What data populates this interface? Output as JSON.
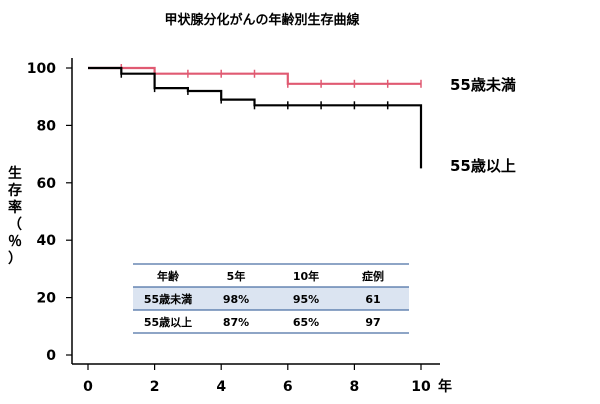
{
  "chart_data": {
    "type": "line",
    "title": "甲状腺分化がんの年齢別生存曲線",
    "ylabel": "生存率（％）",
    "x_unit": "年",
    "xlim": [
      0,
      10
    ],
    "ylim": [
      0,
      100
    ],
    "x_ticks": [
      0,
      2,
      4,
      6,
      8,
      10
    ],
    "y_ticks": [
      0,
      20,
      40,
      60,
      80,
      100
    ],
    "grid": false,
    "series": [
      {
        "name": "55歳未満",
        "color": "#e05a72",
        "x": [
          0,
          1,
          1,
          2,
          2,
          6,
          6,
          10
        ],
        "y": [
          100,
          100,
          100,
          100,
          98,
          98,
          94.5,
          94.5
        ],
        "censor_x": [
          1,
          2,
          3,
          4,
          5,
          6,
          7,
          8,
          9,
          10
        ]
      },
      {
        "name": "55歳以上",
        "color": "#000000",
        "x": [
          0,
          1,
          1,
          2,
          2,
          3,
          3,
          4,
          4,
          5,
          5,
          10,
          10
        ],
        "y": [
          100,
          100,
          98,
          98,
          93,
          93,
          92,
          92,
          89,
          89,
          87,
          87,
          65
        ],
        "censor_x": [
          1,
          2,
          3,
          4,
          5,
          6,
          7,
          8,
          9,
          10
        ]
      }
    ],
    "table": {
      "headers": [
        "年齢",
        "5年",
        "10年",
        "症例"
      ],
      "rows": [
        [
          "55歳未満",
          "98%",
          "95%",
          "61"
        ],
        [
          "55歳以上",
          "87%",
          "65%",
          "97"
        ]
      ],
      "highlight_color": "#dbe4f1",
      "line_color": "#4a6fa5"
    }
  }
}
